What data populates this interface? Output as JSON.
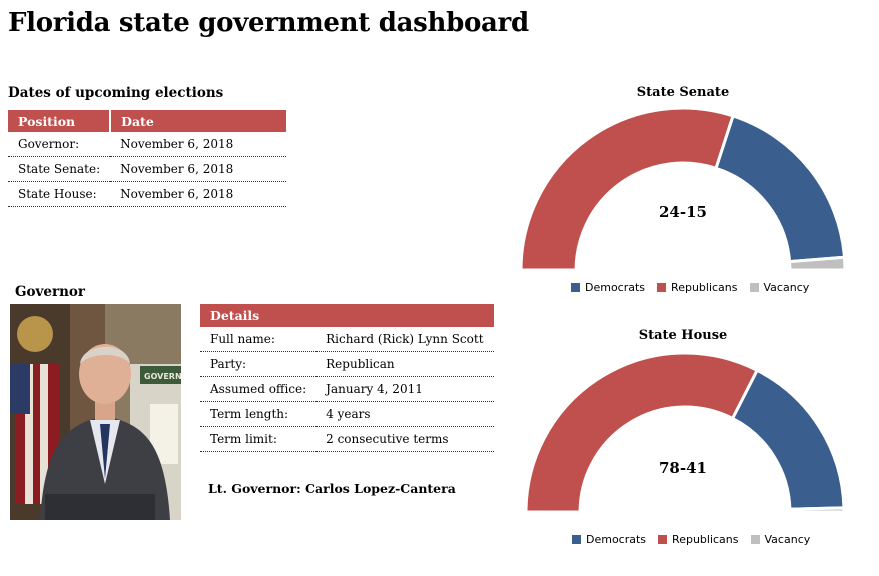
{
  "header": {
    "title": "Florida state government dashboard"
  },
  "elections": {
    "title": "Dates of upcoming elections",
    "columns": [
      "Position",
      "Date"
    ],
    "rows": [
      [
        "Governor:",
        "November 6, 2018"
      ],
      [
        "State Senate:",
        "November 6, 2018"
      ],
      [
        "State House:",
        "November 6, 2018"
      ]
    ]
  },
  "governor": {
    "title": "Governor",
    "details_header": "Details",
    "rows": [
      [
        "Full name:",
        "Richard (Rick) Lynn Scott"
      ],
      [
        "Party:",
        "Republican"
      ],
      [
        "Assumed office:",
        "January 4, 2011"
      ],
      [
        "Term length:",
        "4 years"
      ],
      [
        "Term limit:",
        "2 consecutive terms"
      ]
    ],
    "lt_governor": "Lt. Governor: Carlos Lopez-Cantera",
    "photo_sign_text": "GOVERN"
  },
  "colors": {
    "democrats": "#3a5f8f",
    "republicans": "#c0504d",
    "vacancy": "#bfbfbf"
  },
  "chart_data": [
    {
      "type": "pie",
      "title": "State Senate",
      "center_label": "24-15",
      "categories": [
        "Democrats",
        "Republicans",
        "Vacancy"
      ],
      "values": [
        15,
        24,
        1
      ]
    },
    {
      "type": "pie",
      "title": "State House",
      "center_label": "78-41",
      "categories": [
        "Democrats",
        "Republicans",
        "Vacancy"
      ],
      "values": [
        41,
        78,
        1
      ]
    }
  ]
}
